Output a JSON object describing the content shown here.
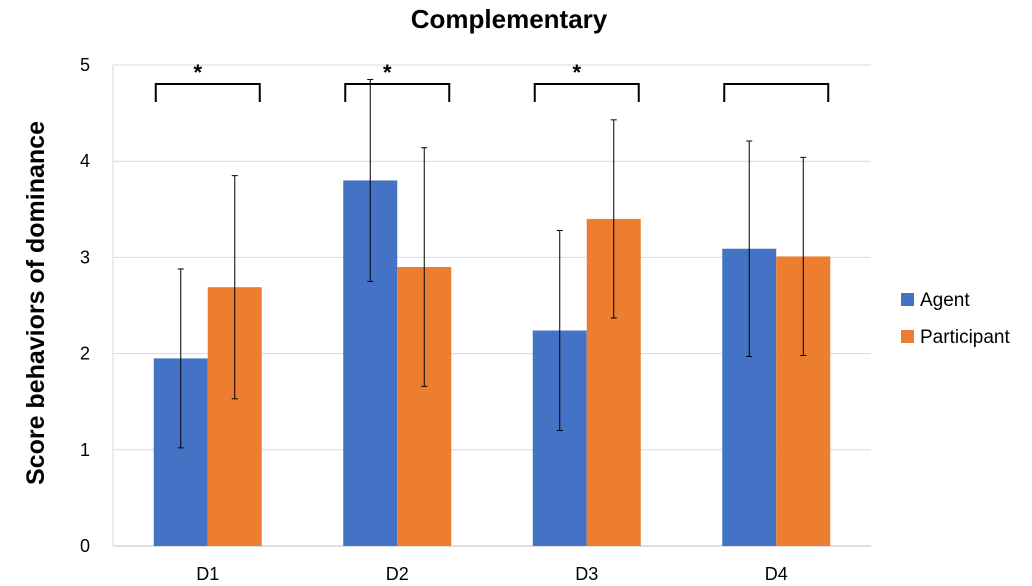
{
  "chart_data": {
    "type": "bar",
    "title": "Complementary",
    "xlabel": "",
    "ylabel": "Score behaviors of dominance",
    "ylim": [
      0,
      5
    ],
    "yticks": [
      0,
      1,
      2,
      3,
      4,
      5
    ],
    "categories": [
      "D1",
      "D2",
      "D3",
      "D4"
    ],
    "series": [
      {
        "name": "Agent",
        "color": "#4472C4",
        "values": [
          1.95,
          3.8,
          2.24,
          3.09
        ],
        "error": [
          0.93,
          1.05,
          1.04,
          1.12
        ]
      },
      {
        "name": "Participant",
        "color": "#ED7D31",
        "values": [
          2.69,
          2.9,
          3.4,
          3.01
        ],
        "error": [
          1.16,
          1.24,
          1.03,
          1.03
        ]
      }
    ],
    "significance": [
      {
        "category": "D1",
        "label": "*"
      },
      {
        "category": "D2",
        "label": "*"
      },
      {
        "category": "D3",
        "label": "*"
      },
      {
        "category": "D4",
        "label": ""
      }
    ],
    "grid": true,
    "legend_position": "right"
  }
}
